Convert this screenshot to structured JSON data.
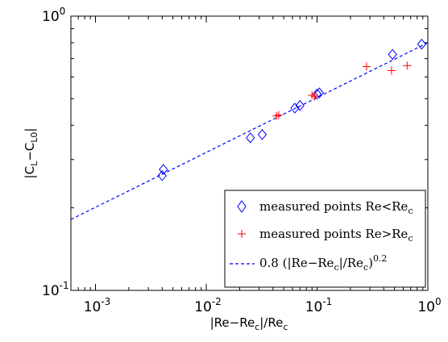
{
  "chart_data": {
    "type": "scatter",
    "xscale": "log",
    "yscale": "log",
    "xlim": [
      0.0006,
      1
    ],
    "ylim": [
      0.1,
      1
    ],
    "grid": false,
    "legend_position": "bottom-right",
    "x_ticks": [
      {
        "base": "10",
        "exp": "-3",
        "value": 0.001
      },
      {
        "base": "10",
        "exp": "-2",
        "value": 0.01
      },
      {
        "base": "10",
        "exp": "-1",
        "value": 0.1
      },
      {
        "base": "10",
        "exp": "0",
        "value": 1
      }
    ],
    "y_ticks": [
      {
        "base": "10",
        "exp": "-1",
        "value": 0.1
      },
      {
        "base": "10",
        "exp": "0",
        "value": 1
      }
    ],
    "xlabel": {
      "parts": [
        "|Re−Re",
        "c",
        "|/Re",
        "c"
      ]
    },
    "ylabel": {
      "parts": [
        "|C",
        "L",
        "−C",
        "L0",
        "|"
      ]
    },
    "series": [
      {
        "name": {
          "parts": [
            "measured points Re<Re",
            "c"
          ]
        },
        "marker": "diamond",
        "color": "#0000ff",
        "points": [
          {
            "x": 0.004,
            "y": 0.262
          },
          {
            "x": 0.0041,
            "y": 0.276
          },
          {
            "x": 0.025,
            "y": 0.36
          },
          {
            "x": 0.032,
            "y": 0.37
          },
          {
            "x": 0.063,
            "y": 0.462
          },
          {
            "x": 0.07,
            "y": 0.472
          },
          {
            "x": 0.1,
            "y": 0.52
          },
          {
            "x": 0.105,
            "y": 0.525
          },
          {
            "x": 0.48,
            "y": 0.725
          },
          {
            "x": 0.88,
            "y": 0.79
          }
        ]
      },
      {
        "name": {
          "parts": [
            "measured points Re>Re",
            "c"
          ]
        },
        "marker": "plus",
        "color": "#ff0000",
        "points": [
          {
            "x": 0.043,
            "y": 0.432
          },
          {
            "x": 0.045,
            "y": 0.436
          },
          {
            "x": 0.09,
            "y": 0.515
          },
          {
            "x": 0.095,
            "y": 0.51
          },
          {
            "x": 0.28,
            "y": 0.655
          },
          {
            "x": 0.47,
            "y": 0.633
          },
          {
            "x": 0.65,
            "y": 0.66
          }
        ]
      },
      {
        "name": {
          "parts": [
            "0.8 (|Re−Re",
            "c",
            "|/Re",
            "c",
            ")",
            "0.2"
          ]
        },
        "line_style": "dashed",
        "color": "#0000ff",
        "function": {
          "coefficient": 0.8,
          "exponent": 0.2
        },
        "x_range": [
          0.0006,
          1
        ]
      }
    ]
  }
}
